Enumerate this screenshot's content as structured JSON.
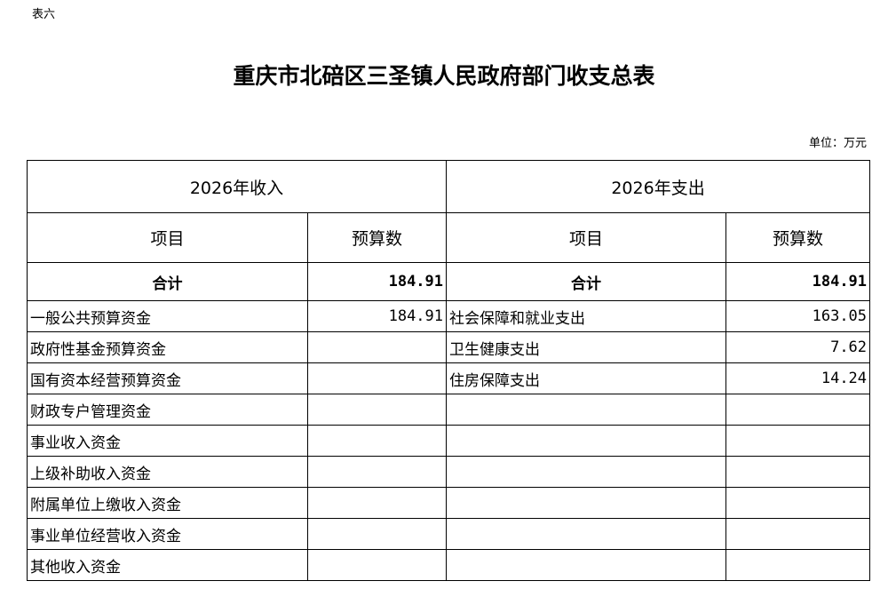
{
  "doc": {
    "label": "表六",
    "title": "重庆市北碚区三圣镇人民政府部门收支总表",
    "unit": "单位：万元"
  },
  "table": {
    "income_header": "2026年收入",
    "expense_header": "2026年支出",
    "col_item": "项目",
    "col_budget": "预算数",
    "total_label": "合计",
    "income_total": "184.91",
    "expense_total": "184.91",
    "rows": [
      {
        "income_item": "一般公共预算资金",
        "income_value": "184.91",
        "expense_item": "社会保障和就业支出",
        "expense_value": "163.05"
      },
      {
        "income_item": "政府性基金预算资金",
        "income_value": "",
        "expense_item": "卫生健康支出",
        "expense_value": "7.62"
      },
      {
        "income_item": "国有资本经营预算资金",
        "income_value": "",
        "expense_item": "住房保障支出",
        "expense_value": "14.24"
      },
      {
        "income_item": "财政专户管理资金",
        "income_value": "",
        "expense_item": "",
        "expense_value": ""
      },
      {
        "income_item": "事业收入资金",
        "income_value": "",
        "expense_item": "",
        "expense_value": ""
      },
      {
        "income_item": "上级补助收入资金",
        "income_value": "",
        "expense_item": "",
        "expense_value": ""
      },
      {
        "income_item": "附属单位上缴收入资金",
        "income_value": "",
        "expense_item": "",
        "expense_value": ""
      },
      {
        "income_item": "事业单位经营收入资金",
        "income_value": "",
        "expense_item": "",
        "expense_value": ""
      },
      {
        "income_item": "其他收入资金",
        "income_value": "",
        "expense_item": "",
        "expense_value": ""
      }
    ]
  }
}
